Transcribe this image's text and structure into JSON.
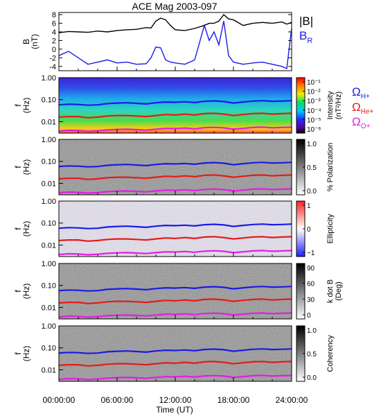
{
  "title": "ACE Mag 2003-097",
  "colors": {
    "B_total": "#000000",
    "B_R": "#1a1ae6",
    "omega_H": "#1a1ae6",
    "omega_He": "#e61a1a",
    "omega_O": "#e61ae6"
  },
  "chart_data": [
    {
      "type": "line",
      "panel": "B",
      "ylabel": "B",
      "yunit": "(nT)",
      "ylim": [
        -5,
        8.5
      ],
      "yticks": [
        "-4",
        "-2",
        "0",
        "2",
        "4",
        "6",
        "8"
      ],
      "legend": [
        {
          "label": "|B|",
          "color": "#000000"
        },
        {
          "label": "B",
          "subscript": "R",
          "color": "#1a1ae6"
        }
      ],
      "x_hours": [
        0,
        1,
        2,
        3,
        4,
        5,
        6,
        7,
        8,
        9,
        9.5,
        10,
        10.5,
        11,
        11.5,
        12,
        13,
        14,
        15,
        15.5,
        16,
        16.5,
        17,
        17.5,
        18,
        19,
        20,
        21,
        22,
        23,
        23.5,
        24
      ],
      "series": [
        {
          "name": "|B|",
          "values": [
            3.8,
            4.1,
            4.0,
            3.9,
            4.2,
            4.0,
            4.3,
            4.5,
            4.6,
            5.0,
            4.9,
            6.5,
            7.2,
            6.8,
            5.5,
            4.5,
            4.3,
            4.8,
            5.5,
            6.0,
            6.0,
            6.5,
            8.0,
            7.0,
            6.8,
            5.5,
            6.0,
            6.2,
            6.0,
            6.3,
            5.8,
            6.2
          ]
        },
        {
          "name": "B_R",
          "values": [
            -1.5,
            -0.5,
            -2.0,
            -3.5,
            -3.0,
            -2.5,
            -3.2,
            -3.0,
            -3.5,
            -3.4,
            -2.0,
            0.5,
            0.3,
            -2.5,
            -3.0,
            -3.2,
            -3.5,
            -2.5,
            5.5,
            2.0,
            4.0,
            1.0,
            6.5,
            -1.5,
            -3.0,
            -3.5,
            -3.2,
            -3.0,
            -3.5,
            -4.0,
            -4.5,
            5.0
          ]
        }
      ]
    },
    {
      "type": "heatmap",
      "panel": "Intensity",
      "ylabel": "f",
      "yunit": "(Hz)",
      "yscale": "log",
      "ylim": [
        0.003,
        1.0
      ],
      "yticks": [
        "1.00",
        "0.10",
        "0.01"
      ],
      "colorbar_label": "Intensity",
      "colorbar_unit": "(nT²/Hz)",
      "colorbar_ticks": [
        "10⁻¹",
        "10⁻²",
        "10⁻³",
        "10⁻⁴",
        "10⁻⁵",
        "10⁻⁶"
      ],
      "colorscale": "rainbow"
    },
    {
      "type": "heatmap",
      "panel": "Polarization",
      "ylabel": "f",
      "yunit": "(Hz)",
      "yscale": "log",
      "ylim": [
        0.003,
        1.0
      ],
      "yticks": [
        "1.00",
        "0.10",
        "0.01"
      ],
      "colorbar_label": "% Polarization",
      "colorbar_ticks": [
        "1.0",
        "0.5",
        "0.0"
      ],
      "colorscale": "grayscale"
    },
    {
      "type": "heatmap",
      "panel": "Ellipticity",
      "ylabel": "f",
      "yunit": "(Hz)",
      "yscale": "log",
      "ylim": [
        0.003,
        1.0
      ],
      "yticks": [
        "1.00",
        "0.10",
        "0.01"
      ],
      "colorbar_label": "Ellipticity",
      "colorbar_ticks": [
        "1",
        "0",
        "−1"
      ],
      "colorscale": "red-white-blue"
    },
    {
      "type": "heatmap",
      "panel": "k dot B",
      "ylabel": "f",
      "yunit": "(Hz)",
      "yscale": "log",
      "ylim": [
        0.003,
        1.0
      ],
      "yticks": [
        "1.00",
        "0.10",
        "0.01"
      ],
      "colorbar_label": "k dot B",
      "colorbar_unit": "(Deg)",
      "colorbar_ticks": [
        "90",
        "60",
        "30",
        "0"
      ],
      "colorscale": "grayscale"
    },
    {
      "type": "heatmap",
      "panel": "Coherency",
      "ylabel": "f",
      "yunit": "(Hz)",
      "yscale": "log",
      "ylim": [
        0.003,
        1.0
      ],
      "yticks": [
        "1.00",
        "0.10",
        "0.01"
      ],
      "colorbar_label": "Coherency",
      "colorbar_ticks": [
        "1.0",
        "0.5",
        "0.0"
      ],
      "colorscale": "grayscale"
    }
  ],
  "gyrofrequency_legend": [
    {
      "label": "Ω",
      "subscript": "H+",
      "color": "#1a1ae6"
    },
    {
      "label": "Ω",
      "subscript": "He+",
      "color": "#e61a1a"
    },
    {
      "label": "Ω",
      "subscript": "O+",
      "color": "#e61ae6"
    }
  ],
  "x_axis": {
    "label": "Time (UT)",
    "ticks": [
      "00:00:00",
      "06:00:00",
      "12:00:00",
      "18:00:00",
      "24:00:00"
    ],
    "xlim_hours": [
      0,
      24
    ]
  }
}
